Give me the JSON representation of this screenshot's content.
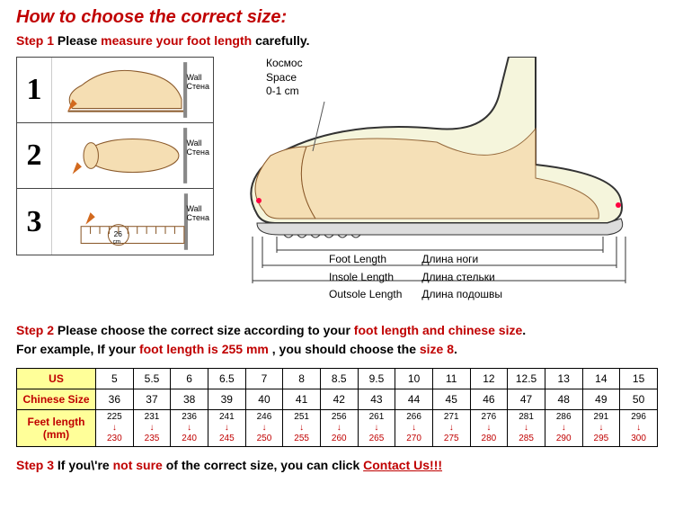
{
  "header": {
    "title": "How to choose the correct size:"
  },
  "step1": {
    "label": "Step 1",
    "before": " Please ",
    "highlight": "measure your foot length",
    "after": " carefully."
  },
  "steps_panel": {
    "nums": [
      "1",
      "2",
      "3"
    ],
    "wall_en": "Wall",
    "wall_ru": "Стена",
    "ruler_value": "26",
    "ruler_unit": "cm"
  },
  "shoe": {
    "space_ru": "Космос",
    "space_en": "Space",
    "space_val": "0-1 cm",
    "rows": [
      {
        "en": "Foot Length",
        "ru": "Длина ноги"
      },
      {
        "en": "Insole Length",
        "ru": "Длина стельки"
      },
      {
        "en": "Outsole Length",
        "ru": "Длина подошвы"
      }
    ]
  },
  "step2": {
    "label": "Step 2",
    "line1a": " Please choose the correct size according to your ",
    "line1b": "foot length and chinese size",
    "line1c": ".",
    "line2a": "For example, If your ",
    "line2b": "foot length is 255 mm",
    "line2c": " , you should choose the ",
    "line2d": "size 8",
    "line2e": "."
  },
  "table": {
    "rows": [
      {
        "label": "US",
        "cells": [
          "5",
          "5.5",
          "6",
          "6.5",
          "7",
          "8",
          "8.5",
          "9.5",
          "10",
          "11",
          "12",
          "12.5",
          "13",
          "14",
          "15"
        ]
      },
      {
        "label": "Chinese Size",
        "cells": [
          "36",
          "37",
          "38",
          "39",
          "40",
          "41",
          "42",
          "43",
          "44",
          "45",
          "46",
          "47",
          "48",
          "49",
          "50"
        ]
      }
    ],
    "feet": {
      "label": "Feet length (mm)",
      "cells": [
        {
          "t": "225",
          "b": "230"
        },
        {
          "t": "231",
          "b": "235"
        },
        {
          "t": "236",
          "b": "240"
        },
        {
          "t": "241",
          "b": "245"
        },
        {
          "t": "246",
          "b": "250"
        },
        {
          "t": "251",
          "b": "255"
        },
        {
          "t": "256",
          "b": "260"
        },
        {
          "t": "261",
          "b": "265"
        },
        {
          "t": "266",
          "b": "270"
        },
        {
          "t": "271",
          "b": "275"
        },
        {
          "t": "276",
          "b": "280"
        },
        {
          "t": "281",
          "b": "285"
        },
        {
          "t": "286",
          "b": "290"
        },
        {
          "t": "291",
          "b": "295"
        },
        {
          "t": "296",
          "b": "300"
        }
      ]
    },
    "colors": {
      "header_bg": "#ffff99",
      "header_fg": "#c00000",
      "border": "#000000"
    }
  },
  "step3": {
    "label": "Step 3",
    "before": " If you\\'re ",
    "mid": "not sure",
    "after": " of the correct size, you can click ",
    "link": "Contact Us!!!"
  }
}
